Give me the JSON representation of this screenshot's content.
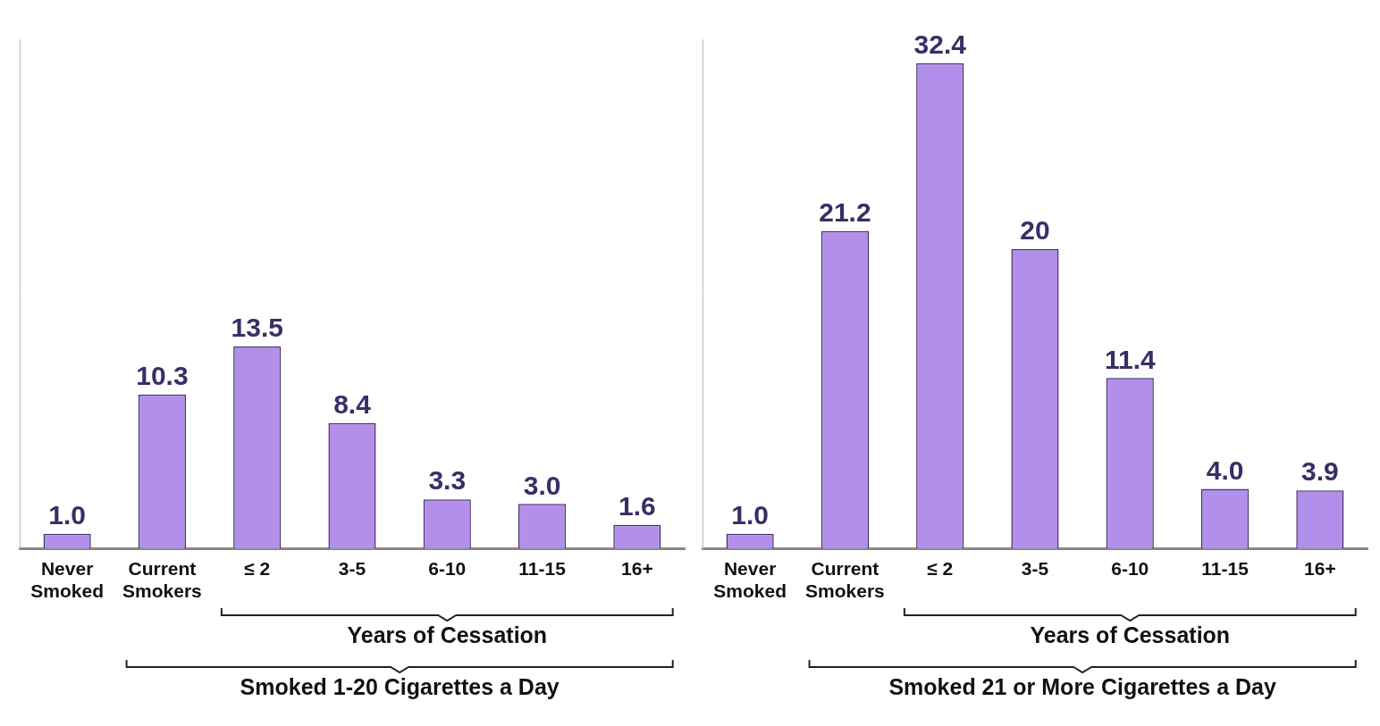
{
  "chart_data": [
    {
      "type": "bar",
      "categories": [
        "Never Smoked",
        "Current Smokers",
        "≤ 2",
        "3-5",
        "6-10",
        "11-15",
        "16+"
      ],
      "values": [
        1.0,
        10.3,
        13.5,
        8.4,
        3.3,
        3.0,
        1.6
      ],
      "value_labels": [
        "1.0",
        "10.3",
        "13.5",
        "8.4",
        "3.3",
        "3.0",
        "1.6"
      ],
      "data_labels": true,
      "color": "#b38fec",
      "ylim": [
        0,
        34
      ],
      "tick_labels": "x",
      "grid": false,
      "groups": [
        {
          "label": "Years of Cessation",
          "categories": [
            "≤ 2",
            "16+"
          ]
        },
        {
          "label": "Smoked 1-20 Cigarettes a Day",
          "categories": [
            "Current Smokers",
            "16+"
          ]
        }
      ]
    },
    {
      "type": "bar",
      "categories": [
        "Never Smoked",
        "Current Smokers",
        "≤ 2",
        "3-5",
        "6-10",
        "11-15",
        "16+"
      ],
      "values": [
        1.0,
        21.2,
        32.4,
        20,
        11.4,
        4.0,
        3.9
      ],
      "value_labels": [
        "1.0",
        "21.2",
        "32.4",
        "20",
        "11.4",
        "4.0",
        "3.9"
      ],
      "data_labels": true,
      "color": "#b38fec",
      "ylim": [
        0,
        34
      ],
      "tick_labels": "x",
      "grid": false,
      "groups": [
        {
          "label": "Years of Cessation",
          "categories": [
            "≤ 2",
            "16+"
          ]
        },
        {
          "label": "Smoked 21 or More Cigarettes a Day",
          "categories": [
            "Current Smokers",
            "16+"
          ]
        }
      ]
    }
  ]
}
